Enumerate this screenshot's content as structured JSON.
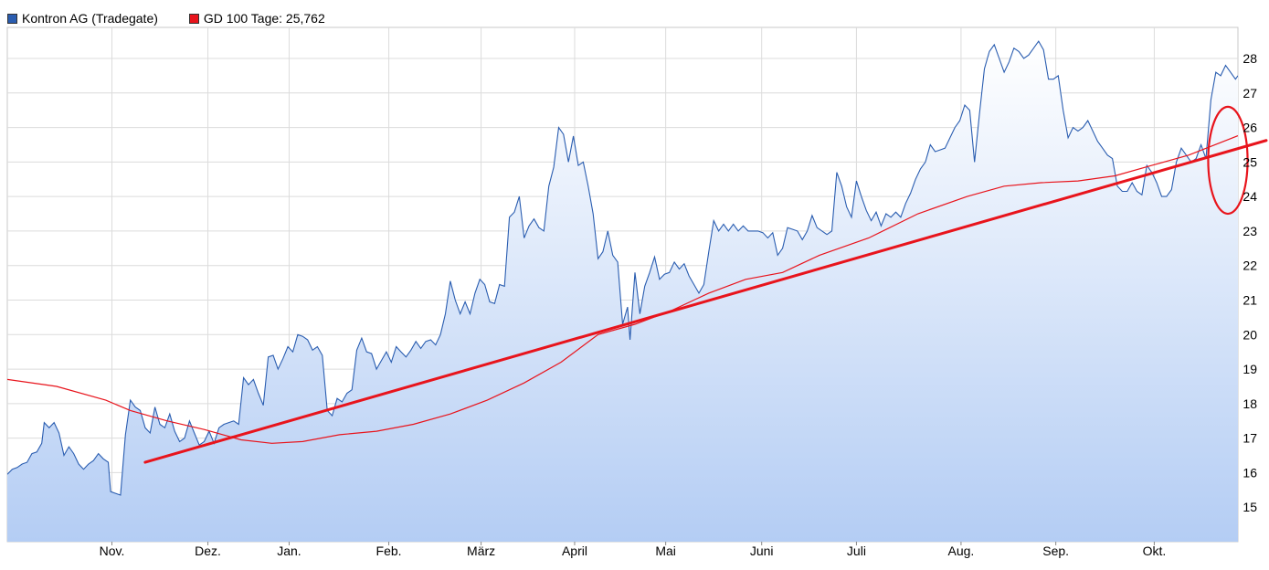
{
  "chart_data": {
    "type": "line",
    "title": "",
    "xlabel": "",
    "ylabel": "",
    "legend": [
      {
        "name": "Kontron AG (Tradegate)",
        "color": "#2a5db0"
      },
      {
        "name": "GD 100 Tage: 25,762",
        "color": "#e8141c"
      }
    ],
    "legend_position": "top-left",
    "grid": true,
    "y_axis_position": "right",
    "ylim": [
      14,
      28.9
    ],
    "y_ticks": [
      15,
      16,
      17,
      18,
      19,
      20,
      21,
      22,
      23,
      24,
      25,
      26,
      27,
      28
    ],
    "x_ticks": [
      {
        "label": "Nov.",
        "t": 0.085
      },
      {
        "label": "Dez.",
        "t": 0.163
      },
      {
        "label": "Jan.",
        "t": 0.229
      },
      {
        "label": "Feb.",
        "t": 0.31
      },
      {
        "label": "März",
        "t": 0.385
      },
      {
        "label": "April",
        "t": 0.461
      },
      {
        "label": "Mai",
        "t": 0.535
      },
      {
        "label": "Juni",
        "t": 0.613
      },
      {
        "label": "Juli",
        "t": 0.69
      },
      {
        "label": "Aug.",
        "t": 0.775
      },
      {
        "label": "Sep.",
        "t": 0.852
      },
      {
        "label": "Okt.",
        "t": 0.932
      }
    ],
    "series": [
      {
        "name": "Kontron AG (Tradegate)",
        "color": "#2a5db0",
        "fill": "gradient",
        "points": [
          [
            0.0,
            15.95
          ],
          [
            0.004,
            16.1
          ],
          [
            0.008,
            16.15
          ],
          [
            0.012,
            16.25
          ],
          [
            0.016,
            16.3
          ],
          [
            0.02,
            16.55
          ],
          [
            0.024,
            16.6
          ],
          [
            0.028,
            16.85
          ],
          [
            0.03,
            17.45
          ],
          [
            0.034,
            17.3
          ],
          [
            0.038,
            17.45
          ],
          [
            0.042,
            17.15
          ],
          [
            0.046,
            16.5
          ],
          [
            0.05,
            16.75
          ],
          [
            0.054,
            16.55
          ],
          [
            0.058,
            16.25
          ],
          [
            0.062,
            16.1
          ],
          [
            0.066,
            16.25
          ],
          [
            0.07,
            16.35
          ],
          [
            0.074,
            16.55
          ],
          [
            0.078,
            16.4
          ],
          [
            0.082,
            16.3
          ],
          [
            0.084,
            15.45
          ],
          [
            0.088,
            15.4
          ],
          [
            0.092,
            15.35
          ],
          [
            0.096,
            17.1
          ],
          [
            0.1,
            18.1
          ],
          [
            0.104,
            17.9
          ],
          [
            0.108,
            17.8
          ],
          [
            0.112,
            17.3
          ],
          [
            0.116,
            17.15
          ],
          [
            0.12,
            17.9
          ],
          [
            0.124,
            17.4
          ],
          [
            0.128,
            17.3
          ],
          [
            0.132,
            17.7
          ],
          [
            0.136,
            17.2
          ],
          [
            0.14,
            16.9
          ],
          [
            0.144,
            17.0
          ],
          [
            0.148,
            17.5
          ],
          [
            0.152,
            17.15
          ],
          [
            0.156,
            16.8
          ],
          [
            0.16,
            16.9
          ],
          [
            0.164,
            17.2
          ],
          [
            0.168,
            16.85
          ],
          [
            0.172,
            17.3
          ],
          [
            0.176,
            17.4
          ],
          [
            0.18,
            17.45
          ],
          [
            0.184,
            17.5
          ],
          [
            0.188,
            17.4
          ],
          [
            0.192,
            18.75
          ],
          [
            0.196,
            18.55
          ],
          [
            0.2,
            18.7
          ],
          [
            0.204,
            18.3
          ],
          [
            0.208,
            17.95
          ],
          [
            0.212,
            19.35
          ],
          [
            0.216,
            19.4
          ],
          [
            0.22,
            19.0
          ],
          [
            0.224,
            19.3
          ],
          [
            0.228,
            19.65
          ],
          [
            0.232,
            19.5
          ],
          [
            0.236,
            20.0
          ],
          [
            0.24,
            19.95
          ],
          [
            0.244,
            19.85
          ],
          [
            0.248,
            19.55
          ],
          [
            0.252,
            19.65
          ],
          [
            0.256,
            19.4
          ],
          [
            0.26,
            17.8
          ],
          [
            0.264,
            17.65
          ],
          [
            0.268,
            18.15
          ],
          [
            0.272,
            18.05
          ],
          [
            0.276,
            18.3
          ],
          [
            0.28,
            18.4
          ],
          [
            0.284,
            19.55
          ],
          [
            0.288,
            19.9
          ],
          [
            0.292,
            19.5
          ],
          [
            0.296,
            19.45
          ],
          [
            0.3,
            19.0
          ],
          [
            0.304,
            19.25
          ],
          [
            0.308,
            19.5
          ],
          [
            0.312,
            19.2
          ],
          [
            0.316,
            19.65
          ],
          [
            0.32,
            19.5
          ],
          [
            0.324,
            19.35
          ],
          [
            0.328,
            19.55
          ],
          [
            0.332,
            19.8
          ],
          [
            0.336,
            19.6
          ],
          [
            0.34,
            19.8
          ],
          [
            0.344,
            19.85
          ],
          [
            0.348,
            19.7
          ],
          [
            0.352,
            20.0
          ],
          [
            0.356,
            20.6
          ],
          [
            0.36,
            21.55
          ],
          [
            0.364,
            21.0
          ],
          [
            0.368,
            20.6
          ],
          [
            0.372,
            20.95
          ],
          [
            0.376,
            20.6
          ],
          [
            0.38,
            21.2
          ],
          [
            0.384,
            21.6
          ],
          [
            0.388,
            21.45
          ],
          [
            0.392,
            20.95
          ],
          [
            0.396,
            20.9
          ],
          [
            0.4,
            21.45
          ],
          [
            0.404,
            21.4
          ],
          [
            0.408,
            23.4
          ],
          [
            0.412,
            23.55
          ],
          [
            0.416,
            24.0
          ],
          [
            0.42,
            22.8
          ],
          [
            0.424,
            23.15
          ],
          [
            0.428,
            23.35
          ],
          [
            0.432,
            23.1
          ],
          [
            0.436,
            23.0
          ],
          [
            0.44,
            24.3
          ],
          [
            0.444,
            24.85
          ],
          [
            0.448,
            26.0
          ],
          [
            0.452,
            25.8
          ],
          [
            0.456,
            25.0
          ],
          [
            0.46,
            25.75
          ],
          [
            0.464,
            24.9
          ],
          [
            0.468,
            25.0
          ],
          [
            0.472,
            24.3
          ],
          [
            0.476,
            23.5
          ],
          [
            0.48,
            22.2
          ],
          [
            0.484,
            22.4
          ],
          [
            0.488,
            23.0
          ],
          [
            0.492,
            22.3
          ],
          [
            0.496,
            22.1
          ],
          [
            0.5,
            20.3
          ],
          [
            0.504,
            20.8
          ],
          [
            0.506,
            19.85
          ],
          [
            0.51,
            21.8
          ],
          [
            0.514,
            20.6
          ],
          [
            0.518,
            21.4
          ],
          [
            0.522,
            21.8
          ],
          [
            0.526,
            22.25
          ],
          [
            0.53,
            21.6
          ],
          [
            0.534,
            21.75
          ],
          [
            0.538,
            21.8
          ],
          [
            0.542,
            22.1
          ],
          [
            0.546,
            21.9
          ],
          [
            0.55,
            22.05
          ],
          [
            0.554,
            21.7
          ],
          [
            0.558,
            21.45
          ],
          [
            0.562,
            21.2
          ],
          [
            0.566,
            21.45
          ],
          [
            0.57,
            22.4
          ],
          [
            0.574,
            23.3
          ],
          [
            0.578,
            23.0
          ],
          [
            0.582,
            23.2
          ],
          [
            0.586,
            23.0
          ],
          [
            0.59,
            23.2
          ],
          [
            0.594,
            23.0
          ],
          [
            0.598,
            23.15
          ],
          [
            0.602,
            23.0
          ],
          [
            0.606,
            23.0
          ],
          [
            0.61,
            23.0
          ],
          [
            0.614,
            22.95
          ],
          [
            0.618,
            22.8
          ],
          [
            0.622,
            22.95
          ],
          [
            0.626,
            22.3
          ],
          [
            0.63,
            22.5
          ],
          [
            0.634,
            23.1
          ],
          [
            0.638,
            23.05
          ],
          [
            0.642,
            23.0
          ],
          [
            0.646,
            22.75
          ],
          [
            0.65,
            23.0
          ],
          [
            0.654,
            23.45
          ],
          [
            0.658,
            23.1
          ],
          [
            0.662,
            23.0
          ],
          [
            0.666,
            22.9
          ],
          [
            0.67,
            23.0
          ],
          [
            0.674,
            24.7
          ],
          [
            0.678,
            24.3
          ],
          [
            0.682,
            23.7
          ],
          [
            0.686,
            23.4
          ],
          [
            0.69,
            24.45
          ],
          [
            0.694,
            24.0
          ],
          [
            0.698,
            23.6
          ],
          [
            0.702,
            23.3
          ],
          [
            0.706,
            23.55
          ],
          [
            0.71,
            23.15
          ],
          [
            0.714,
            23.5
          ],
          [
            0.718,
            23.4
          ],
          [
            0.722,
            23.55
          ],
          [
            0.726,
            23.4
          ],
          [
            0.73,
            23.8
          ],
          [
            0.734,
            24.1
          ],
          [
            0.738,
            24.5
          ],
          [
            0.742,
            24.8
          ],
          [
            0.746,
            25.0
          ],
          [
            0.75,
            25.5
          ],
          [
            0.754,
            25.3
          ],
          [
            0.758,
            25.35
          ],
          [
            0.762,
            25.4
          ],
          [
            0.766,
            25.7
          ],
          [
            0.77,
            26.0
          ],
          [
            0.774,
            26.2
          ],
          [
            0.778,
            26.65
          ],
          [
            0.782,
            26.5
          ],
          [
            0.786,
            25.0
          ],
          [
            0.79,
            26.4
          ],
          [
            0.794,
            27.7
          ],
          [
            0.798,
            28.2
          ],
          [
            0.802,
            28.4
          ],
          [
            0.806,
            28.0
          ],
          [
            0.81,
            27.6
          ],
          [
            0.814,
            27.9
          ],
          [
            0.818,
            28.3
          ],
          [
            0.822,
            28.2
          ],
          [
            0.826,
            28.0
          ],
          [
            0.83,
            28.1
          ],
          [
            0.834,
            28.3
          ],
          [
            0.838,
            28.5
          ],
          [
            0.842,
            28.25
          ],
          [
            0.846,
            27.4
          ],
          [
            0.85,
            27.4
          ],
          [
            0.854,
            27.5
          ],
          [
            0.858,
            26.5
          ],
          [
            0.862,
            25.7
          ],
          [
            0.866,
            26.0
          ],
          [
            0.87,
            25.9
          ],
          [
            0.874,
            26.0
          ],
          [
            0.878,
            26.2
          ],
          [
            0.882,
            25.9
          ],
          [
            0.886,
            25.6
          ],
          [
            0.89,
            25.4
          ],
          [
            0.894,
            25.2
          ],
          [
            0.898,
            25.1
          ],
          [
            0.902,
            24.3
          ],
          [
            0.906,
            24.15
          ],
          [
            0.91,
            24.15
          ],
          [
            0.914,
            24.4
          ],
          [
            0.918,
            24.15
          ],
          [
            0.922,
            24.05
          ],
          [
            0.926,
            24.9
          ],
          [
            0.93,
            24.7
          ],
          [
            0.934,
            24.4
          ],
          [
            0.938,
            24.0
          ],
          [
            0.942,
            24.0
          ],
          [
            0.946,
            24.2
          ],
          [
            0.95,
            25.0
          ],
          [
            0.954,
            25.4
          ],
          [
            0.958,
            25.2
          ],
          [
            0.962,
            25.0
          ],
          [
            0.966,
            25.1
          ],
          [
            0.97,
            25.5
          ],
          [
            0.974,
            25.1
          ],
          [
            0.978,
            26.8
          ],
          [
            0.982,
            27.6
          ],
          [
            0.986,
            27.5
          ],
          [
            0.99,
            27.8
          ],
          [
            0.994,
            27.6
          ],
          [
            0.998,
            27.4
          ],
          [
            1.0,
            27.5
          ]
        ]
      },
      {
        "name": "GD 100 Tage: 25,762",
        "color": "#e8141c",
        "points": [
          [
            0.0,
            18.7
          ],
          [
            0.04,
            18.5
          ],
          [
            0.08,
            18.1
          ],
          [
            0.1,
            17.8
          ],
          [
            0.13,
            17.5
          ],
          [
            0.16,
            17.25
          ],
          [
            0.19,
            16.95
          ],
          [
            0.215,
            16.85
          ],
          [
            0.24,
            16.9
          ],
          [
            0.27,
            17.1
          ],
          [
            0.3,
            17.2
          ],
          [
            0.33,
            17.4
          ],
          [
            0.36,
            17.7
          ],
          [
            0.39,
            18.1
          ],
          [
            0.42,
            18.6
          ],
          [
            0.45,
            19.2
          ],
          [
            0.48,
            20.0
          ],
          [
            0.51,
            20.3
          ],
          [
            0.54,
            20.7
          ],
          [
            0.57,
            21.2
          ],
          [
            0.6,
            21.6
          ],
          [
            0.63,
            21.8
          ],
          [
            0.66,
            22.3
          ],
          [
            0.7,
            22.8
          ],
          [
            0.74,
            23.5
          ],
          [
            0.78,
            24.0
          ],
          [
            0.81,
            24.3
          ],
          [
            0.84,
            24.4
          ],
          [
            0.87,
            24.45
          ],
          [
            0.9,
            24.6
          ],
          [
            0.93,
            24.9
          ],
          [
            0.96,
            25.2
          ],
          [
            1.0,
            25.76
          ]
        ]
      }
    ]
  },
  "annotations": {
    "trend_line": {
      "from": [
        0.112,
        16.3
      ],
      "to": [
        1.045,
        25.85
      ],
      "color": "#e8141c"
    },
    "circle": {
      "center": [
        1.0,
        25.05
      ],
      "rx": 0.016,
      "ry_units": 1.55,
      "color": "#e8141c"
    }
  }
}
